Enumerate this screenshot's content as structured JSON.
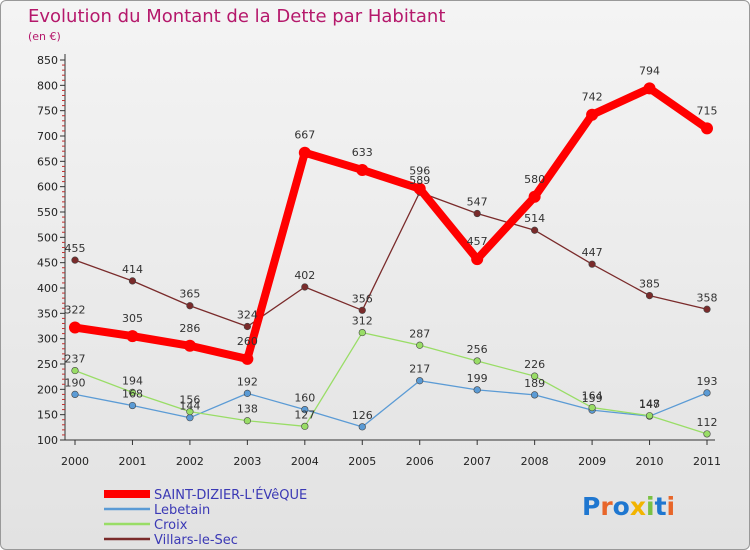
{
  "chart_data": {
    "type": "line",
    "title": "Evolution du Montant de la Dette par Habitant",
    "subtitle": "(en €)",
    "x": [
      "2000",
      "2001",
      "2002",
      "2003",
      "2004",
      "2005",
      "2006",
      "2007",
      "2008",
      "2009",
      "2010",
      "2011"
    ],
    "ylim": [
      100,
      850
    ],
    "yticks": [
      100,
      150,
      200,
      250,
      300,
      350,
      400,
      450,
      500,
      550,
      600,
      650,
      700,
      750,
      800,
      850
    ],
    "grid": false,
    "legend_position": "bottom-left",
    "series": [
      {
        "name": "SAINT-DIZIER-L'ÉVêQUE",
        "color": "#ff0000",
        "values": [
          322,
          305,
          286,
          260,
          667,
          633,
          596,
          457,
          580,
          742,
          794,
          715
        ]
      },
      {
        "name": "Lebetain",
        "color": "#5b9bd5",
        "values": [
          190,
          168,
          144,
          192,
          160,
          126,
          217,
          199,
          189,
          159,
          147,
          193
        ]
      },
      {
        "name": "Croix",
        "color": "#99dd66",
        "values": [
          237,
          194,
          156,
          138,
          127,
          312,
          287,
          256,
          226,
          164,
          148,
          112
        ]
      },
      {
        "name": "Villars-le-Sec",
        "color": "#7a2b2b",
        "values": [
          455,
          414,
          365,
          324,
          402,
          356,
          589,
          547,
          514,
          447,
          385,
          358
        ]
      }
    ]
  },
  "logo": {
    "text": "Proxiti",
    "letter_colors": [
      "#1f77d0",
      "#e8662a",
      "#1f77d0",
      "#f2b400",
      "#7ac143",
      "#1f77d0",
      "#e8662a"
    ]
  }
}
